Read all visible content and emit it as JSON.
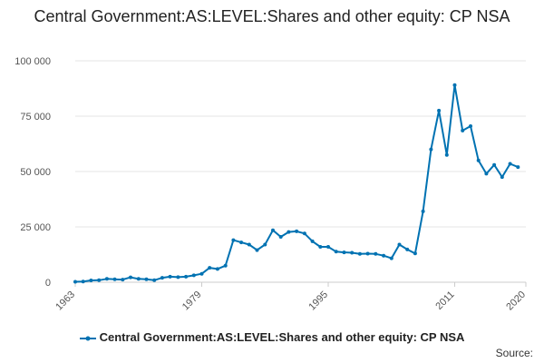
{
  "title": "Central Government:AS:LEVEL:Shares and other equity: CP NSA",
  "source_label": "Source:",
  "colors": {
    "series": "#0072b2",
    "grid": "#e6e6e6",
    "axis": "#cccccc"
  },
  "chart_data": {
    "type": "line",
    "title": "Central Government:AS:LEVEL:Shares and other equity: CP NSA",
    "xlabel": "",
    "ylabel": "",
    "xlim": [
      1963,
      2020
    ],
    "ylim": [
      0,
      100000
    ],
    "x_ticks": [
      "1963",
      "1979",
      "1995",
      "2011",
      "2020"
    ],
    "y_ticks": [
      "0",
      "25 000",
      "50 000",
      "75 000",
      "100 000"
    ],
    "grid": true,
    "legend_position": "bottom",
    "series": [
      {
        "name": "Central Government:AS:LEVEL:Shares and other equity: CP NSA",
        "x": [
          1963,
          1964,
          1965,
          1966,
          1967,
          1968,
          1969,
          1970,
          1971,
          1972,
          1973,
          1974,
          1975,
          1976,
          1977,
          1978,
          1979,
          1980,
          1981,
          1982,
          1983,
          1984,
          1985,
          1986,
          1987,
          1988,
          1989,
          1990,
          1991,
          1992,
          1993,
          1994,
          1995,
          1996,
          1997,
          1998,
          1999,
          2000,
          2001,
          2002,
          2003,
          2004,
          2005,
          2006,
          2007,
          2008,
          2009,
          2010,
          2011,
          2012,
          2013,
          2014,
          2015,
          2016,
          2017,
          2018,
          2019,
          2020
        ],
        "values": [
          200,
          300,
          800,
          900,
          1500,
          1300,
          1200,
          2200,
          1500,
          1300,
          900,
          2000,
          2500,
          2300,
          2500,
          3100,
          3800,
          6500,
          6000,
          7500,
          19000,
          18000,
          17000,
          14500,
          17000,
          23500,
          20500,
          22700,
          23000,
          22000,
          18500,
          16000,
          16000,
          13800,
          13500,
          13300,
          12800,
          12900,
          12800,
          12000,
          10800,
          17000,
          14800,
          13000,
          32000,
          60000,
          77500,
          57500,
          89000,
          68500,
          70500,
          55000,
          49000,
          53000,
          47500,
          53500,
          52000,
          null
        ]
      }
    ]
  }
}
